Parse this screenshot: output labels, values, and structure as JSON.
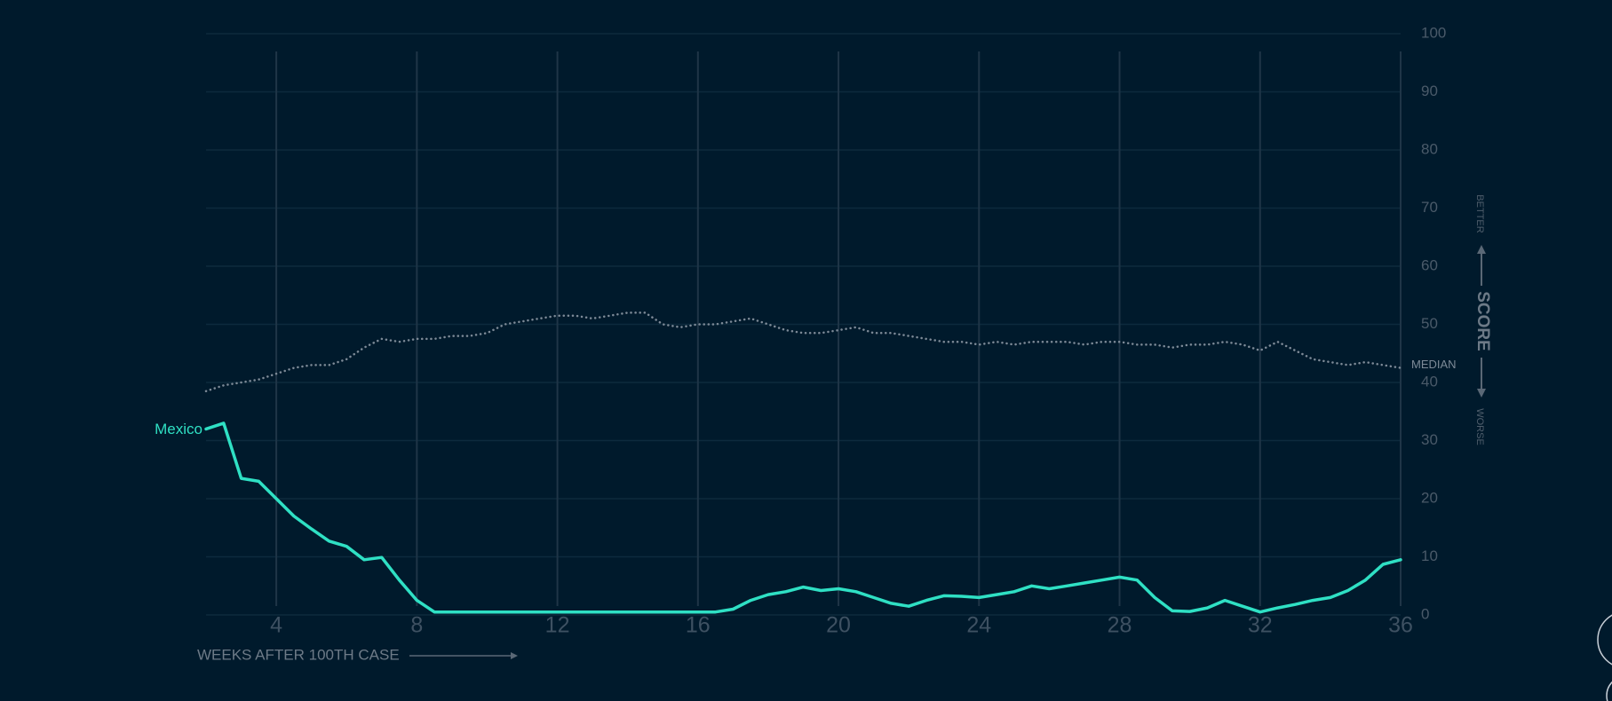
{
  "chart_data": {
    "type": "line",
    "x_label": "WEEKS AFTER 100TH CASE",
    "y_label": "SCORE",
    "y_label_up": "BETTER",
    "y_label_down": "WORSE",
    "x": [
      2,
      2.5,
      3,
      3.5,
      4,
      4.5,
      5,
      5.5,
      6,
      6.5,
      7,
      7.5,
      8,
      8.5,
      9,
      9.5,
      10,
      10.5,
      11,
      11.5,
      12,
      12.5,
      13,
      13.5,
      14,
      14.5,
      15,
      15.5,
      16,
      16.5,
      17,
      17.5,
      18,
      18.5,
      19,
      19.5,
      20,
      20.5,
      21,
      21.5,
      22,
      22.5,
      23,
      23.5,
      24,
      24.5,
      25,
      25.5,
      26,
      26.5,
      27,
      27.5,
      28,
      28.5,
      29,
      29.5,
      30,
      30.5,
      31,
      31.5,
      32,
      32.5,
      33,
      33.5,
      34,
      34.5,
      35,
      35.5,
      36
    ],
    "series": [
      {
        "name": "MEDIAN",
        "color": "#7d8a97",
        "style": "dotted",
        "values": [
          38.5,
          39.5,
          40,
          40.5,
          41.5,
          42.5,
          43,
          43,
          44,
          46,
          47.5,
          47,
          47.5,
          47.5,
          48,
          48,
          48.5,
          50,
          50.5,
          51,
          51.5,
          51.5,
          51,
          51.5,
          52,
          52,
          50,
          49.5,
          50,
          50,
          50.5,
          51,
          50,
          49,
          48.5,
          48.5,
          49,
          49.5,
          48.5,
          48.5,
          48,
          47.5,
          47,
          47,
          46.5,
          47,
          46.5,
          47,
          47,
          47,
          46.5,
          47,
          47,
          46.5,
          46.5,
          46,
          46.5,
          46.5,
          47,
          46.5,
          45.5,
          47,
          45.5,
          44,
          43.5,
          43,
          43.5,
          43,
          42.5
        ]
      },
      {
        "name": "Mexico",
        "color": "#2fe0c4",
        "style": "solid",
        "values": [
          32,
          33,
          23.5,
          23,
          20,
          17,
          14.8,
          12.7,
          11.8,
          9.5,
          9.9,
          6,
          2.5,
          0.5,
          0.5,
          0.5,
          0.5,
          0.5,
          0.5,
          0.5,
          0.5,
          0.5,
          0.5,
          0.5,
          0.5,
          0.5,
          0.5,
          0.5,
          0.5,
          0.5,
          1,
          2.5,
          3.5,
          4,
          4.8,
          4.2,
          4.5,
          4,
          3,
          2,
          1.5,
          2.5,
          3.3,
          3.2,
          3,
          3.5,
          4,
          5,
          4.5,
          5,
          5.5,
          6,
          6.5,
          6,
          3,
          0.7,
          0.6,
          1.2,
          2.5,
          1.5,
          0.5,
          1.2,
          1.8,
          2.5,
          3,
          4.2,
          6,
          8.7,
          9.5
        ]
      }
    ],
    "xlim": [
      2,
      36
    ],
    "xticks": [
      4,
      8,
      12,
      16,
      20,
      24,
      28,
      32,
      36
    ],
    "ylim": [
      0,
      100
    ],
    "yticks": [
      0,
      10,
      20,
      30,
      40,
      50,
      60,
      70,
      80,
      90,
      100
    ],
    "grid": true
  }
}
